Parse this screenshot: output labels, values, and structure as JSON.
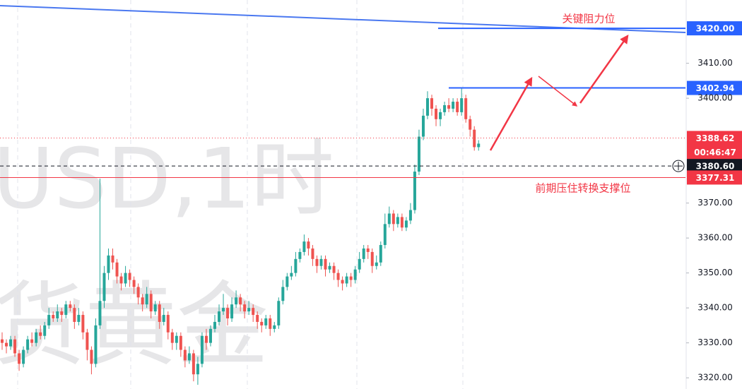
{
  "chart_data": {
    "type": "candlestick",
    "watermark": [
      "USD,1时",
      "货黄金"
    ],
    "up_color": "#26a69a",
    "down_color": "#ef5350",
    "open": [
      3331,
      3330,
      3329,
      3331,
      3327,
      3324,
      3328,
      3331,
      3330,
      3333,
      3332,
      3335,
      3338,
      3337,
      3339,
      3338,
      3341,
      3340,
      3336,
      3338,
      3333,
      3328,
      3324,
      3335,
      3342,
      3350,
      3355,
      3353,
      3349,
      3347,
      3350,
      3348,
      3346,
      3343,
      3341,
      3344,
      3339,
      3341,
      3336,
      3338,
      3333,
      3330,
      3332,
      3328,
      3325,
      3327,
      3321,
      3324,
      3332,
      3330,
      3334,
      3336,
      3339,
      3340,
      3337,
      3341,
      3343,
      3341,
      3339,
      3340,
      3338,
      3336,
      3335,
      3337,
      3334,
      3335,
      3342,
      3346,
      3349,
      3350,
      3354,
      3356,
      3359,
      3357,
      3354,
      3352,
      3354,
      3351,
      3352,
      3350,
      3348,
      3347,
      3349,
      3348,
      3351,
      3354,
      3357,
      3356,
      3352,
      3353,
      3358,
      3364,
      3367,
      3364,
      3366,
      3363,
      3365,
      3368,
      3379,
      3389,
      3395,
      3400,
      3397,
      3394,
      3396,
      3398,
      3397,
      3399,
      3396,
      3400,
      3394,
      3391,
      3386
    ],
    "high": [
      3333,
      3331,
      3332,
      3332,
      3328,
      3329,
      3332,
      3333,
      3334,
      3335,
      3336,
      3340,
      3339,
      3341,
      3340,
      3342,
      3342,
      3341,
      3340,
      3339,
      3334,
      3329,
      3337,
      3377,
      3352,
      3357,
      3357,
      3354,
      3350,
      3352,
      3351,
      3349,
      3347,
      3344,
      3346,
      3345,
      3342,
      3342,
      3340,
      3339,
      3334,
      3333,
      3333,
      3329,
      3329,
      3328,
      3326,
      3333,
      3334,
      3335,
      3338,
      3341,
      3344,
      3341,
      3343,
      3345,
      3344,
      3342,
      3342,
      3341,
      3339,
      3337,
      3338,
      3338,
      3336,
      3343,
      3348,
      3350,
      3352,
      3356,
      3357,
      3361,
      3360,
      3358,
      3355,
      3355,
      3355,
      3353,
      3353,
      3351,
      3349,
      3350,
      3350,
      3352,
      3356,
      3358,
      3358,
      3357,
      3355,
      3359,
      3367,
      3369,
      3368,
      3367,
      3367,
      3366,
      3370,
      3381,
      3391,
      3397,
      3402,
      3401,
      3398,
      3397,
      3399,
      3400,
      3400,
      3400,
      3403,
      3401,
      3395,
      3392,
      3388
    ],
    "low": [
      3328,
      3327,
      3328,
      3326,
      3322,
      3323,
      3327,
      3329,
      3329,
      3331,
      3331,
      3334,
      3336,
      3336,
      3336,
      3337,
      3339,
      3334,
      3335,
      3331,
      3325,
      3321,
      3323,
      3334,
      3340,
      3348,
      3351,
      3347,
      3345,
      3346,
      3346,
      3344,
      3341,
      3339,
      3340,
      3337,
      3338,
      3334,
      3335,
      3331,
      3328,
      3328,
      3326,
      3323,
      3324,
      3319,
      3318,
      3323,
      3328,
      3329,
      3333,
      3335,
      3338,
      3335,
      3336,
      3340,
      3339,
      3337,
      3338,
      3336,
      3334,
      3333,
      3334,
      3332,
      3333,
      3334,
      3341,
      3345,
      3348,
      3349,
      3353,
      3355,
      3355,
      3352,
      3350,
      3351,
      3349,
      3350,
      3348,
      3346,
      3345,
      3346,
      3346,
      3347,
      3350,
      3353,
      3354,
      3350,
      3351,
      3352,
      3357,
      3363,
      3362,
      3363,
      3362,
      3362,
      3364,
      3367,
      3378,
      3388,
      3394,
      3395,
      3392,
      3392,
      3395,
      3396,
      3396,
      3395,
      3395,
      3393,
      3389,
      3385,
      3385
    ],
    "close": [
      3330,
      3329,
      3331,
      3327,
      3324,
      3328,
      3331,
      3330,
      3333,
      3332,
      3335,
      3338,
      3337,
      3339,
      3338,
      3341,
      3340,
      3336,
      3338,
      3333,
      3328,
      3324,
      3335,
      3342,
      3350,
      3355,
      3353,
      3349,
      3347,
      3350,
      3348,
      3346,
      3343,
      3341,
      3344,
      3339,
      3341,
      3336,
      3338,
      3333,
      3330,
      3332,
      3328,
      3325,
      3327,
      3321,
      3324,
      3332,
      3330,
      3334,
      3336,
      3339,
      3340,
      3337,
      3341,
      3343,
      3341,
      3339,
      3340,
      3338,
      3336,
      3335,
      3337,
      3334,
      3335,
      3342,
      3346,
      3349,
      3350,
      3354,
      3356,
      3359,
      3357,
      3354,
      3352,
      3354,
      3351,
      3352,
      3350,
      3348,
      3347,
      3349,
      3348,
      3351,
      3354,
      3357,
      3356,
      3352,
      3353,
      3358,
      3364,
      3367,
      3364,
      3366,
      3363,
      3365,
      3368,
      3379,
      3389,
      3395,
      3400,
      3397,
      3394,
      3396,
      3398,
      3397,
      3399,
      3396,
      3400,
      3394,
      3391,
      3386,
      3387
    ],
    "ylim": [
      3316.8,
      3428.1
    ],
    "yticks": [
      {
        "value": 3320,
        "label": "3320.00"
      },
      {
        "value": 3330,
        "label": "3330.00"
      },
      {
        "value": 3340,
        "label": "3340.00"
      },
      {
        "value": 3350,
        "label": "3350.00"
      },
      {
        "value": 3360,
        "label": "3360.00"
      },
      {
        "value": 3370,
        "label": "3370.00"
      },
      {
        "value": 3400,
        "label": "3400.00"
      },
      {
        "value": 3410,
        "label": "3410.00"
      }
    ],
    "levels": [
      {
        "value": 3420,
        "label": "3420.00",
        "color": "#2962ff",
        "style": "short"
      },
      {
        "value": 3402.94,
        "label": "3402.94",
        "color": "#2962ff",
        "style": "short"
      },
      {
        "value": 3388.62,
        "label": "3388.62",
        "color": "#f23645",
        "style": "dotted"
      },
      {
        "value": 3380.6,
        "label": "3380.60",
        "color": "#131722",
        "style": "dashed"
      },
      {
        "value": 3377.31,
        "label": "3377.31",
        "color": "#f23645",
        "style": "solid"
      }
    ],
    "countdown": "00:46:47",
    "annotations": [
      "关键阻力位",
      "前期压住转换支撑位"
    ]
  }
}
